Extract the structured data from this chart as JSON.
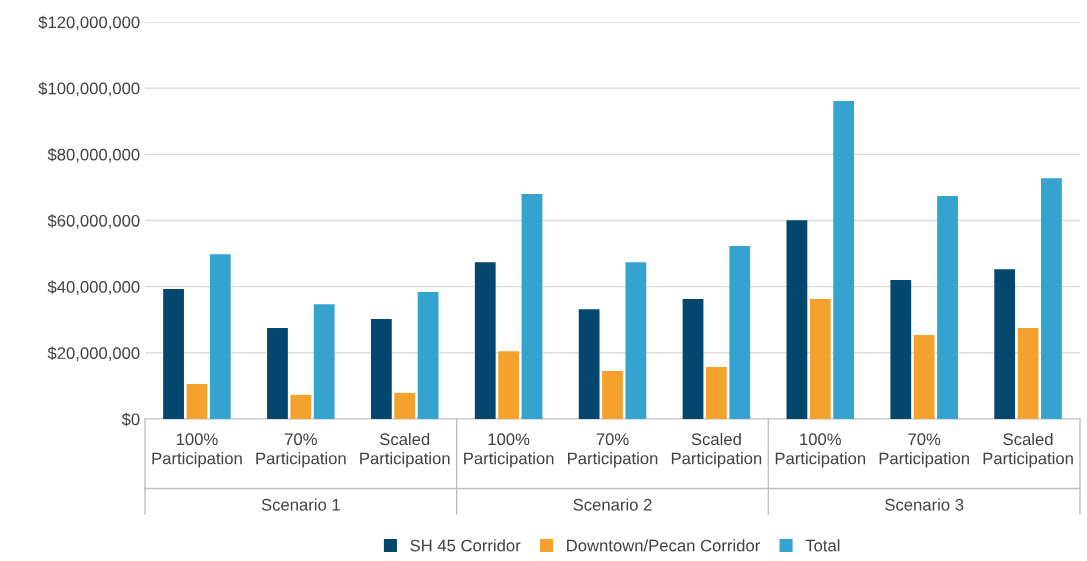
{
  "chart_data": {
    "type": "bar",
    "categories": [
      "100% Participation",
      "70% Participation",
      "Scaled Participation",
      "100% Participation",
      "70% Participation",
      "Scaled Participation",
      "100% Participation",
      "70% Participation",
      "Scaled Participation"
    ],
    "series": [
      {
        "name": "SH 45 Corridor",
        "color": "#03466e",
        "values": [
          39300000,
          27500000,
          30200000,
          47400000,
          33200000,
          36300000,
          60100000,
          42000000,
          45300000
        ]
      },
      {
        "name": "Downtown/Pecan Corridor",
        "color": "#f4a22d",
        "values": [
          10600000,
          7300000,
          7900000,
          20500000,
          14500000,
          15700000,
          36300000,
          25400000,
          27500000
        ]
      },
      {
        "name": "Total",
        "color": "#35a2cf",
        "values": [
          49800000,
          34700000,
          38400000,
          68000000,
          47400000,
          52300000,
          96100000,
          67400000,
          72800000
        ]
      }
    ],
    "annotations": [
      "Scenario 1",
      "Scenario 2",
      "Scenario 3"
    ],
    "ylim": [
      0,
      120000000
    ],
    "yticks": [
      {
        "value": 0,
        "label": "$0"
      },
      {
        "value": 20000000,
        "label": "$20,000,000"
      },
      {
        "value": 40000000,
        "label": "$40,000,000"
      },
      {
        "value": 60000000,
        "label": "$60,000,000"
      },
      {
        "value": 80000000,
        "label": "$80,000,000"
      },
      {
        "value": 100000000,
        "label": "$100,000,000"
      },
      {
        "value": 120000000,
        "label": "$120,000,000"
      }
    ],
    "grid": "y",
    "legend": "bottom"
  }
}
